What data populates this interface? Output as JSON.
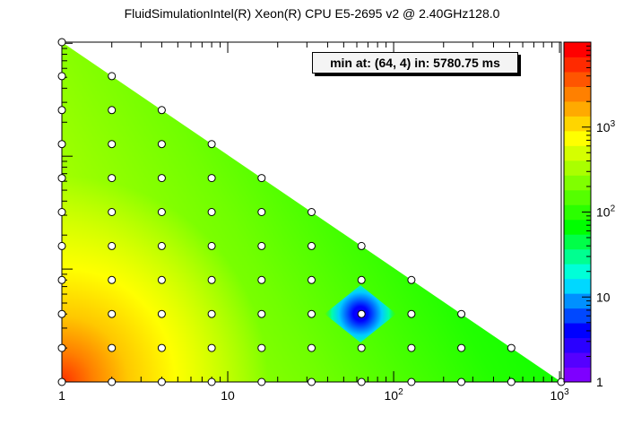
{
  "chart_data": {
    "type": "heatmap",
    "title": "FluidSimulationIntel(R) Xeon(R) CPU E5-2695 v2 @ 2.40GHz128.0",
    "annotation": "min at: (64, 4) in: 5780.75 ms",
    "x_scale": "log",
    "y_scale": "log",
    "xlim": [
      1,
      1024
    ],
    "ylim": [
      1,
      1024
    ],
    "x_tick_labels": [
      "1",
      "10",
      "10^2",
      "10^3"
    ],
    "colorbar": {
      "scale": "log",
      "range": [
        1,
        10000
      ],
      "tick_labels": [
        "1",
        "10",
        "10^2",
        "10^3"
      ],
      "colors": [
        "#7e00ff",
        "#5500ff",
        "#2a00ff",
        "#0000ff",
        "#0048ff",
        "#0090ff",
        "#00d8ff",
        "#00ffd8",
        "#00ff90",
        "#00ff48",
        "#00ff00",
        "#2bff00",
        "#55ff00",
        "#80ff00",
        "#aaff00",
        "#d5ff00",
        "#ffff00",
        "#ffd500",
        "#ffaa00",
        "#ff8000",
        "#ff5500",
        "#ff2a00",
        "#ff0000"
      ]
    },
    "points": [
      [
        1,
        1
      ],
      [
        2,
        1
      ],
      [
        4,
        1
      ],
      [
        8,
        1
      ],
      [
        16,
        1
      ],
      [
        32,
        1
      ],
      [
        64,
        1
      ],
      [
        128,
        1
      ],
      [
        256,
        1
      ],
      [
        512,
        1
      ],
      [
        1024,
        1
      ],
      [
        1,
        2
      ],
      [
        2,
        2
      ],
      [
        4,
        2
      ],
      [
        8,
        2
      ],
      [
        16,
        2
      ],
      [
        32,
        2
      ],
      [
        64,
        2
      ],
      [
        128,
        2
      ],
      [
        256,
        2
      ],
      [
        512,
        2
      ],
      [
        1,
        4
      ],
      [
        2,
        4
      ],
      [
        4,
        4
      ],
      [
        8,
        4
      ],
      [
        16,
        4
      ],
      [
        32,
        4
      ],
      [
        64,
        4
      ],
      [
        128,
        4
      ],
      [
        256,
        4
      ],
      [
        1,
        8
      ],
      [
        2,
        8
      ],
      [
        4,
        8
      ],
      [
        8,
        8
      ],
      [
        16,
        8
      ],
      [
        32,
        8
      ],
      [
        64,
        8
      ],
      [
        128,
        8
      ],
      [
        1,
        16
      ],
      [
        2,
        16
      ],
      [
        4,
        16
      ],
      [
        8,
        16
      ],
      [
        16,
        16
      ],
      [
        32,
        16
      ],
      [
        64,
        16
      ],
      [
        1,
        32
      ],
      [
        2,
        32
      ],
      [
        4,
        32
      ],
      [
        8,
        32
      ],
      [
        16,
        32
      ],
      [
        32,
        32
      ],
      [
        1,
        64
      ],
      [
        2,
        64
      ],
      [
        4,
        64
      ],
      [
        8,
        64
      ],
      [
        16,
        64
      ],
      [
        1,
        128
      ],
      [
        2,
        128
      ],
      [
        4,
        128
      ],
      [
        8,
        128
      ],
      [
        1,
        256
      ],
      [
        2,
        256
      ],
      [
        4,
        256
      ],
      [
        1,
        512
      ],
      [
        2,
        512
      ],
      [
        1,
        1024
      ]
    ],
    "minimum": {
      "x": 64,
      "y": 4,
      "value": 5780.75
    }
  }
}
